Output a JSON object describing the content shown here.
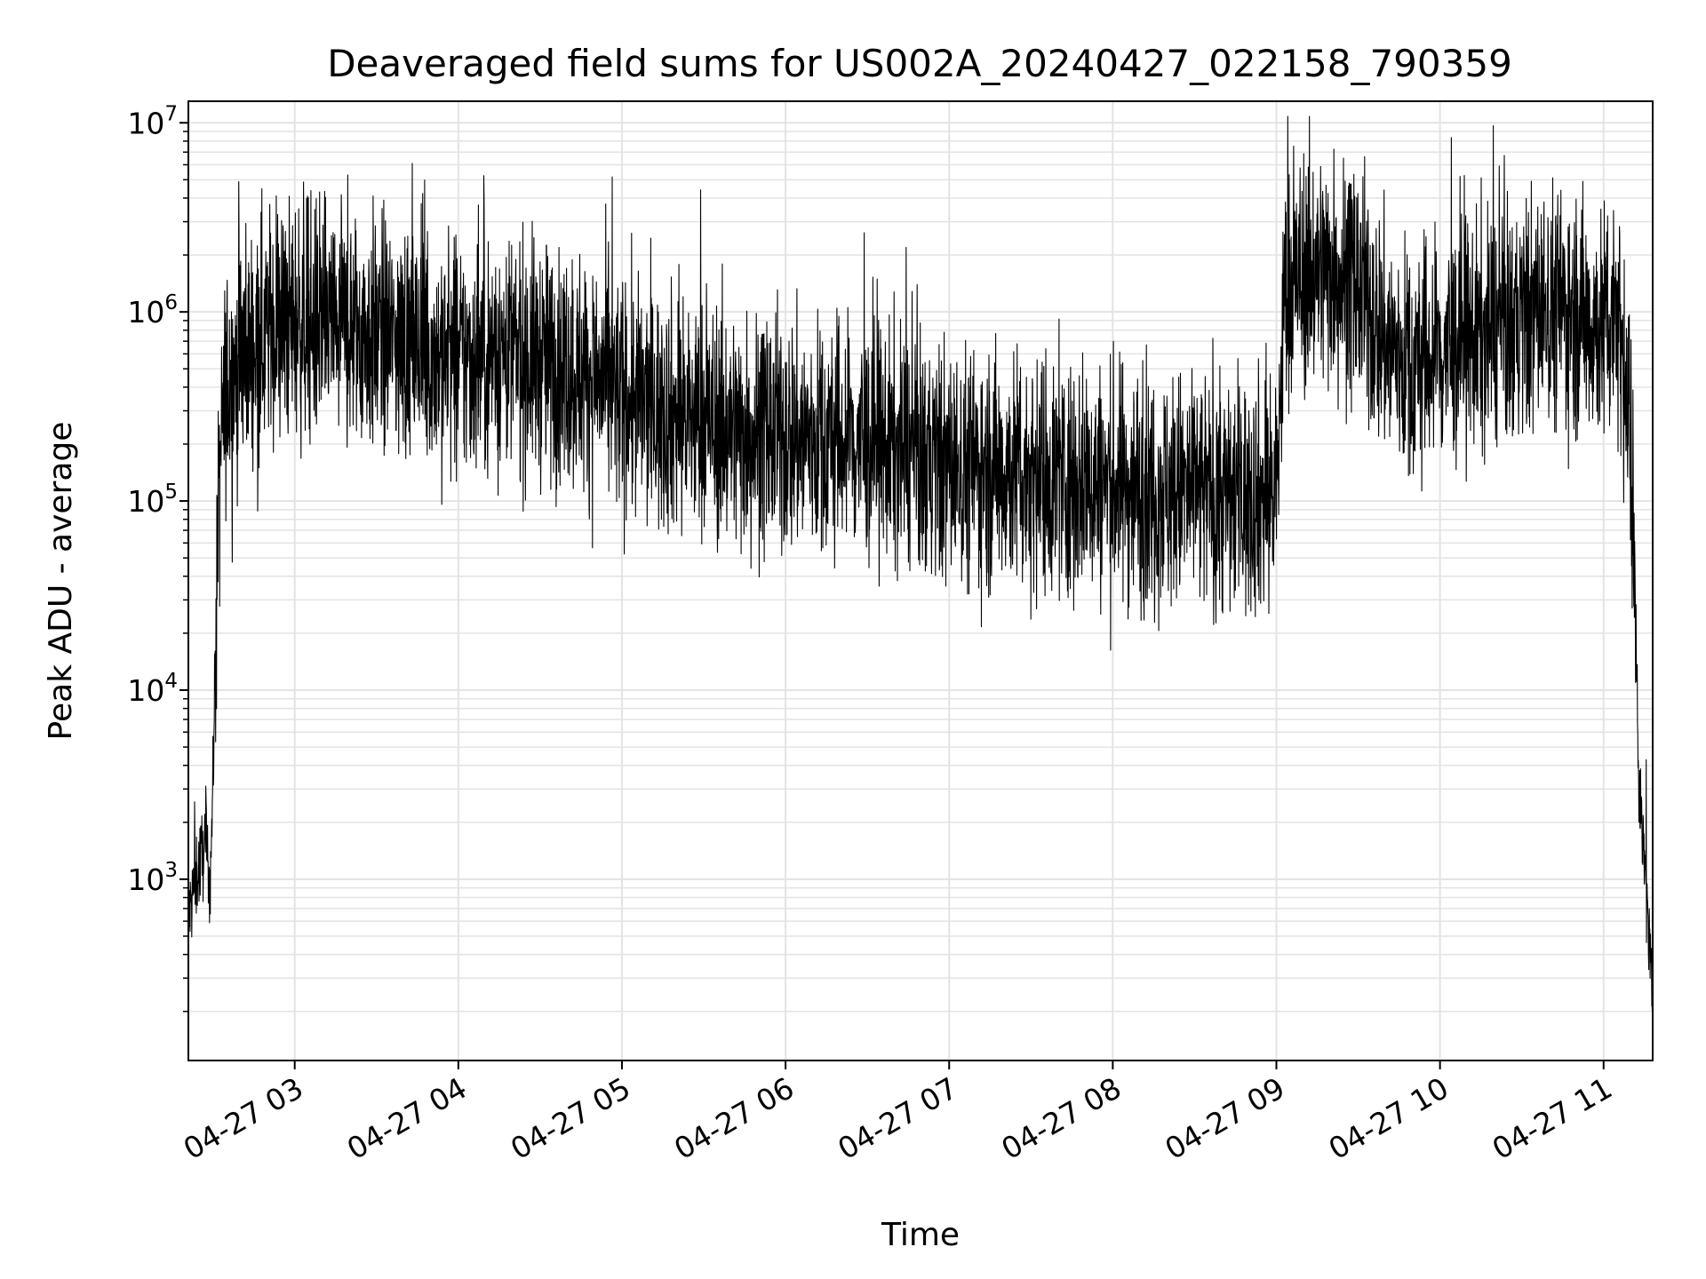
{
  "chart_data": {
    "type": "line",
    "title": "Deaveraged field sums for US002A_20240427_022158_790359",
    "xlabel": "Time",
    "ylabel": "Peak ADU - average",
    "x_range": [
      "2024-04-27 02:21",
      "2024-04-27 11:18"
    ],
    "y_scale": "log",
    "ylim": [
      110,
      13000000
    ],
    "grid": true,
    "x_ticks": [
      "04-27 03",
      "04-27 04",
      "04-27 05",
      "04-27 06",
      "04-27 07",
      "04-27 08",
      "04-27 09",
      "04-27 10",
      "04-27 11"
    ],
    "y_ticks": [
      {
        "base": "10",
        "exp": "3",
        "value": 1000
      },
      {
        "base": "10",
        "exp": "4",
        "value": 10000
      },
      {
        "base": "10",
        "exp": "5",
        "value": 100000
      },
      {
        "base": "10",
        "exp": "6",
        "value": 1000000
      },
      {
        "base": "10",
        "exp": "7",
        "value": 10000000
      }
    ],
    "series": [
      {
        "color": "#000000",
        "points": [
          [
            "02:21",
            600
          ],
          [
            "02:23",
            900
          ],
          [
            "02:25",
            1200
          ],
          [
            "02:27",
            1500
          ],
          [
            "02:29",
            1000
          ],
          [
            "02:30",
            3000
          ],
          [
            "02:31",
            20000
          ],
          [
            "02:32",
            80000
          ],
          [
            "02:33",
            200000
          ],
          [
            "02:35",
            400000
          ],
          [
            "02:40",
            600000
          ],
          [
            "02:50",
            800000
          ],
          [
            "03:00",
            900000
          ],
          [
            "03:10",
            850000
          ],
          [
            "03:20",
            800000
          ],
          [
            "03:30",
            750000
          ],
          [
            "03:40",
            700000
          ],
          [
            "03:50",
            600000
          ],
          [
            "04:00",
            550000
          ],
          [
            "04:10",
            600000
          ],
          [
            "04:20",
            600000
          ],
          [
            "04:30",
            550000
          ],
          [
            "04:40",
            500000
          ],
          [
            "04:50",
            450000
          ],
          [
            "05:00",
            350000
          ],
          [
            "05:15",
            300000
          ],
          [
            "05:30",
            260000
          ],
          [
            "05:45",
            230000
          ],
          [
            "06:00",
            220000
          ],
          [
            "06:15",
            210000
          ],
          [
            "06:30",
            200000
          ],
          [
            "06:45",
            180000
          ],
          [
            "07:00",
            150000
          ],
          [
            "07:15",
            150000
          ],
          [
            "07:30",
            140000
          ],
          [
            "07:45",
            130000
          ],
          [
            "08:00",
            120000
          ],
          [
            "08:15",
            115000
          ],
          [
            "08:30",
            110000
          ],
          [
            "08:45",
            105000
          ],
          [
            "09:00",
            110000
          ],
          [
            "09:03",
            1200000
          ],
          [
            "09:10",
            1600000
          ],
          [
            "09:20",
            1700000
          ],
          [
            "09:30",
            1300000
          ],
          [
            "09:40",
            700000
          ],
          [
            "09:50",
            500000
          ],
          [
            "10:00",
            600000
          ],
          [
            "10:10",
            700000
          ],
          [
            "10:20",
            800000
          ],
          [
            "10:30",
            900000
          ],
          [
            "10:40",
            1100000
          ],
          [
            "10:50",
            1000000
          ],
          [
            "11:00",
            800000
          ],
          [
            "11:05",
            1200000
          ],
          [
            "11:08",
            400000
          ],
          [
            "11:10",
            200000
          ],
          [
            "11:12",
            20000
          ],
          [
            "11:13",
            3000
          ],
          [
            "11:15",
            1200
          ],
          [
            "11:16",
            700
          ],
          [
            "11:17",
            400
          ],
          [
            "11:18",
            200
          ]
        ]
      }
    ]
  }
}
